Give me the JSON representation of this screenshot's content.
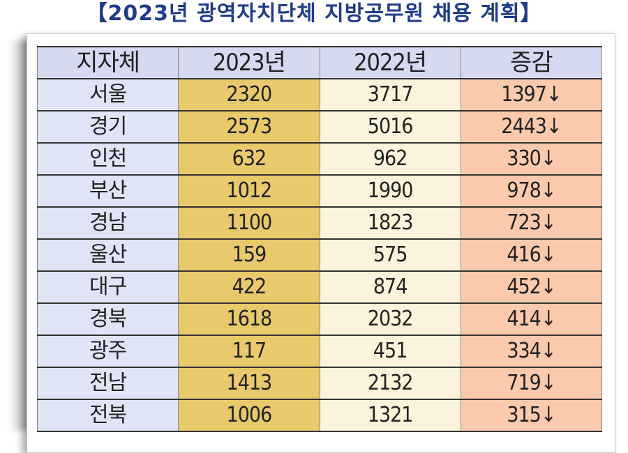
{
  "title": "【2023년 광역자치단체 지방공무원 채용 계획】",
  "table": {
    "headers": [
      "지자체",
      "2023년",
      "2022년",
      "증감"
    ],
    "rows": [
      [
        "서울",
        "2320",
        "3717",
        "1397↓"
      ],
      [
        "경기",
        "2573",
        "5016",
        "2443↓"
      ],
      [
        "인천",
        "632",
        "962",
        "330↓"
      ],
      [
        "부산",
        "1012",
        "1990",
        "978↓"
      ],
      [
        "경남",
        "1100",
        "1823",
        "723↓"
      ],
      [
        "울산",
        "159",
        "575",
        "416↓"
      ],
      [
        "대구",
        "422",
        "874",
        "452↓"
      ],
      [
        "경북",
        "1618",
        "2032",
        "414↓"
      ],
      [
        "광주",
        "117",
        "451",
        "334↓"
      ],
      [
        "전남",
        "1413",
        "2132",
        "719↓"
      ],
      [
        "전북",
        "1006",
        "1321",
        "315↓"
      ]
    ]
  },
  "colors": {
    "title": "#1f3c88",
    "header": "#d6daf0",
    "region_col": "#dfe5f6",
    "col_2023": "#e8c96c",
    "col_2022": "#fbf3dc",
    "col_change": "#fbc9ab"
  }
}
